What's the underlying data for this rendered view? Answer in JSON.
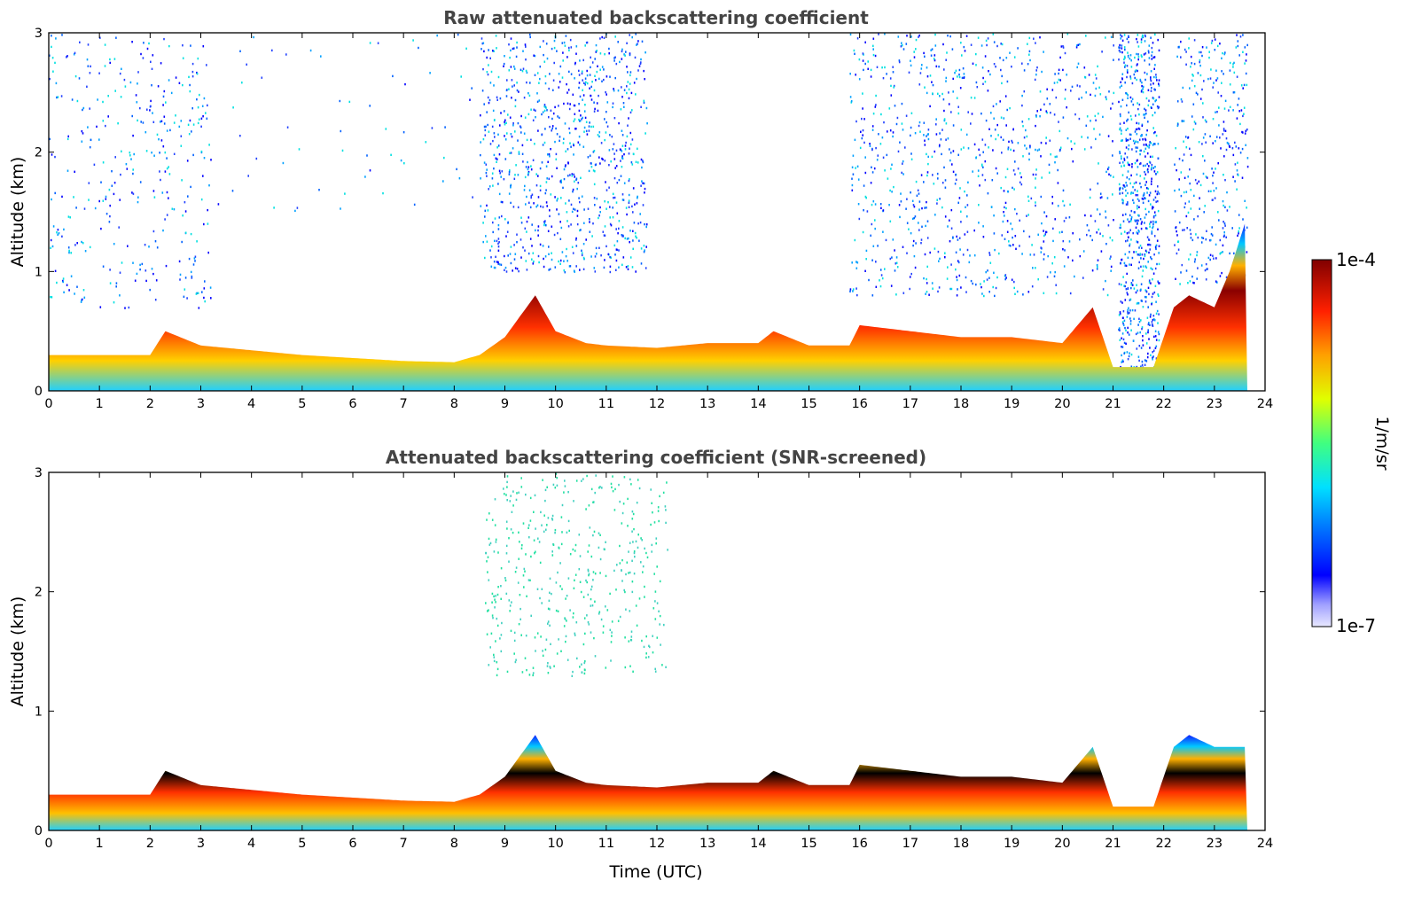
{
  "chart_data": [
    {
      "type": "heatmap",
      "title": "Raw attenuated backscattering coefficient",
      "xlabel": "",
      "ylabel": "Altitude (km)",
      "xlim": [
        0,
        24
      ],
      "ylim": [
        0,
        3
      ],
      "xticks": [
        "0",
        "1",
        "2",
        "3",
        "4",
        "5",
        "6",
        "7",
        "8",
        "9",
        "10",
        "11",
        "12",
        "13",
        "14",
        "15",
        "16",
        "17",
        "18",
        "19",
        "20",
        "21",
        "22",
        "23",
        "24"
      ],
      "yticks": [
        "0",
        "1",
        "2",
        "3"
      ],
      "data_end_time": 23.65,
      "layer_top_km": {
        "x": [
          0,
          2,
          2.3,
          3,
          5,
          7,
          8,
          8.5,
          9,
          9.6,
          10,
          10.6,
          11,
          12,
          13,
          14,
          14.3,
          15,
          15.8,
          16,
          17,
          18,
          19,
          20,
          20.6,
          21,
          21.8,
          22.2,
          22.5,
          23,
          23.3,
          23.6
        ],
        "y": [
          0.3,
          0.3,
          0.5,
          0.38,
          0.3,
          0.25,
          0.24,
          0.3,
          0.45,
          0.8,
          0.5,
          0.4,
          0.38,
          0.36,
          0.4,
          0.4,
          0.5,
          0.38,
          0.38,
          0.55,
          0.5,
          0.45,
          0.45,
          0.4,
          0.7,
          0.2,
          0.2,
          0.7,
          0.8,
          0.7,
          1.0,
          1.4
        ]
      },
      "colorbar": {
        "label": "1/m/sr",
        "min_label": "1e-7",
        "max_label": "1e-4"
      }
    },
    {
      "type": "heatmap",
      "title": "Attenuated backscattering coefficient (SNR-screened)",
      "xlabel": "Time (UTC)",
      "ylabel": "Altitude (km)",
      "xlim": [
        0,
        24
      ],
      "ylim": [
        0,
        3
      ],
      "xticks": [
        "0",
        "1",
        "2",
        "3",
        "4",
        "5",
        "6",
        "7",
        "8",
        "9",
        "10",
        "11",
        "12",
        "13",
        "14",
        "15",
        "16",
        "17",
        "18",
        "19",
        "20",
        "21",
        "22",
        "23",
        "24"
      ],
      "yticks": [
        "0",
        "1",
        "2",
        "3"
      ],
      "data_end_time": 23.65
    }
  ]
}
